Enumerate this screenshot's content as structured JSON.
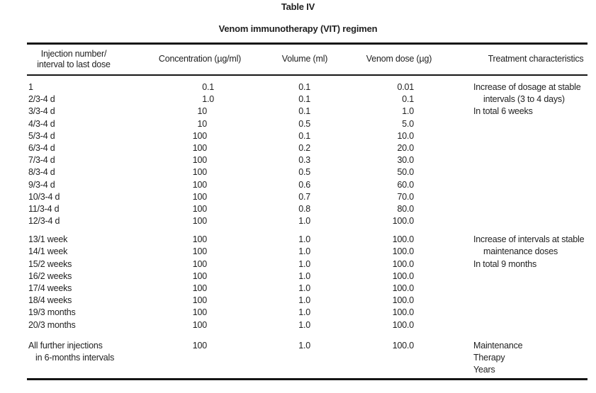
{
  "page": {
    "label": "Table IV",
    "title": "Venom immunotherapy (VIT) regimen"
  },
  "colors": {
    "ink": "#222222",
    "rule": "#151515",
    "background": "#ffffff"
  },
  "table": {
    "columns": [
      {
        "lines": [
          "Injection number/",
          "interval to last dose"
        ]
      },
      {
        "lines": [
          "Concentration (µg/ml)"
        ]
      },
      {
        "lines": [
          "Volume (ml)"
        ]
      },
      {
        "lines": [
          "Venom dose (µg)"
        ]
      },
      {
        "lines": [
          "Treatment characteristics"
        ]
      }
    ],
    "sections": [
      {
        "rows": [
          {
            "injection": "1",
            "concentration": "0.1",
            "volume": "0.1",
            "dose": "0.01",
            "note": "Increase of dosage at stable"
          },
          {
            "injection": "2/3-4 d",
            "concentration": "1.0",
            "volume": "0.1",
            "dose": "0.1",
            "note": "intervals (3 to 4 days)",
            "note_indent": true
          },
          {
            "injection": "3/3-4 d",
            "concentration": "10",
            "volume": "0.1",
            "dose": "1.0",
            "note": "In total 6 weeks"
          },
          {
            "injection": "4/3-4 d",
            "concentration": "10",
            "volume": "0.5",
            "dose": "5.0",
            "note": ""
          },
          {
            "injection": "5/3-4 d",
            "concentration": "100",
            "volume": "0.1",
            "dose": "10.0",
            "note": ""
          },
          {
            "injection": "6/3-4 d",
            "concentration": "100",
            "volume": "0.2",
            "dose": "20.0",
            "note": ""
          },
          {
            "injection": "7/3-4 d",
            "concentration": "100",
            "volume": "0.3",
            "dose": "30.0",
            "note": ""
          },
          {
            "injection": "8/3-4 d",
            "concentration": "100",
            "volume": "0.5",
            "dose": "50.0",
            "note": ""
          },
          {
            "injection": "9/3-4 d",
            "concentration": "100",
            "volume": "0.6",
            "dose": "60.0",
            "note": ""
          },
          {
            "injection": "10/3-4 d",
            "concentration": "100",
            "volume": "0.7",
            "dose": "70.0",
            "note": ""
          },
          {
            "injection": "11/3-4 d",
            "concentration": "100",
            "volume": "0.8",
            "dose": "80.0",
            "note": ""
          },
          {
            "injection": "12/3-4 d",
            "concentration": "100",
            "volume": "1.0",
            "dose": "100.0",
            "note": ""
          }
        ]
      },
      {
        "rows": [
          {
            "injection": "13/1 week",
            "concentration": "100",
            "volume": "1.0",
            "dose": "100.0",
            "note": "Increase of intervals at stable"
          },
          {
            "injection": "14/1 week",
            "concentration": "100",
            "volume": "1.0",
            "dose": "100.0",
            "note": "maintenance doses",
            "note_indent": true
          },
          {
            "injection": "15/2 weeks",
            "concentration": "100",
            "volume": "1.0",
            "dose": "100.0",
            "note": "In total 9 months"
          },
          {
            "injection": "16/2 weeks",
            "concentration": "100",
            "volume": "1.0",
            "dose": "100.0",
            "note": ""
          },
          {
            "injection": "17/4 weeks",
            "concentration": "100",
            "volume": "1.0",
            "dose": "100.0",
            "note": ""
          },
          {
            "injection": "18/4 weeks",
            "concentration": "100",
            "volume": "1.0",
            "dose": "100.0",
            "note": ""
          },
          {
            "injection": "19/3 months",
            "concentration": "100",
            "volume": "1.0",
            "dose": "100.0",
            "note": ""
          },
          {
            "injection": "20/3 months",
            "concentration": "100",
            "volume": "1.0",
            "dose": "100.0",
            "note": ""
          }
        ]
      },
      {
        "last": true,
        "rows": [
          {
            "injection": "All further injections",
            "concentration": "100",
            "volume": "1.0",
            "dose": "100.0",
            "note": "Maintenance"
          },
          {
            "injection": "in 6-months intervals",
            "injection_indent": true,
            "concentration": "",
            "volume": "",
            "dose": "",
            "note": "Therapy"
          },
          {
            "injection": "",
            "concentration": "",
            "volume": "",
            "dose": "",
            "note": "Years"
          }
        ]
      }
    ]
  }
}
